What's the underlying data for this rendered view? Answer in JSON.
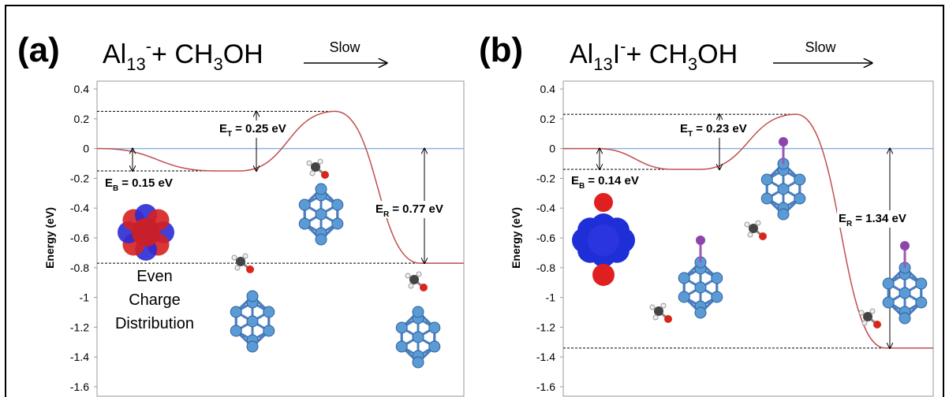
{
  "chart_data": [
    {
      "type": "line",
      "panel_label": "(a)",
      "title": [
        {
          "text": "Al"
        },
        {
          "sub": "13"
        },
        {
          "sup": "-"
        },
        {
          "text": "+ CH"
        },
        {
          "sub": "3"
        },
        {
          "text": "OH"
        }
      ],
      "arrow_label": "Slow",
      "ylabel": "Energy (eV)",
      "ylim": [
        -1.6,
        0.4
      ],
      "yticks": [
        0.4,
        0.2,
        0,
        -0.2,
        -0.4,
        -0.6,
        -0.8,
        -1,
        -1.2,
        -1.4,
        -1.6
      ],
      "hline": 0,
      "values": [
        0,
        -0.15,
        0.25,
        -0.77
      ],
      "color": "#c0504d",
      "hline_color": "#8db3e2",
      "annotations": [
        {
          "symbol": "E",
          "subscript": "B",
          "text": "= 0.15 eV"
        },
        {
          "symbol": "E",
          "subscript": "T",
          "text": "= 0.25 eV"
        },
        {
          "symbol": "E",
          "subscript": "R",
          "text": "= 0.77 eV"
        }
      ],
      "note": [
        "Even",
        "Charge",
        "Distribution"
      ]
    },
    {
      "type": "line",
      "panel_label": "(b)",
      "title": [
        {
          "text": "Al"
        },
        {
          "sub": "13"
        },
        {
          "text": "I"
        },
        {
          "sup": "-"
        },
        {
          "text": "+ CH"
        },
        {
          "sub": "3"
        },
        {
          "text": "OH"
        }
      ],
      "arrow_label": "Slow",
      "ylabel": "Energy (eV)",
      "ylim": [
        -1.6,
        0.4
      ],
      "yticks": [
        0.4,
        0.2,
        0,
        -0.2,
        -0.4,
        -0.6,
        -0.8,
        -1,
        -1.2,
        -1.4,
        -1.6
      ],
      "hline": 0,
      "values": [
        0,
        -0.14,
        0.23,
        -1.34
      ],
      "color": "#c0504d",
      "hline_color": "#8db3e2",
      "annotations": [
        {
          "symbol": "E",
          "subscript": "B",
          "text": "= 0.14 eV"
        },
        {
          "symbol": "E",
          "subscript": "T",
          "text": "= 0.23 eV"
        },
        {
          "symbol": "E",
          "subscript": "R",
          "text": "= 1.34 eV"
        }
      ]
    }
  ]
}
